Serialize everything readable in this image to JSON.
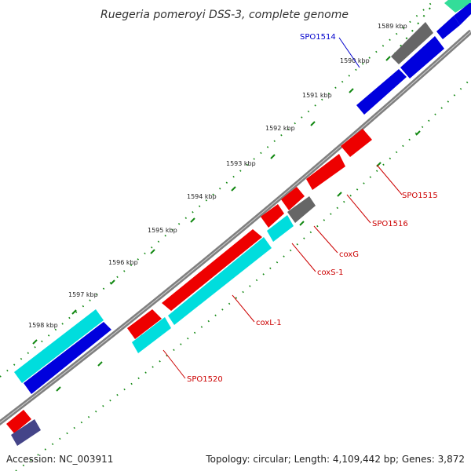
{
  "title": "Ruegeria pomeroyi DSS-3, complete genome",
  "footer": {
    "accession": "Accession: NC_003911",
    "summary": "Topology: circular; Length: 4,109,442 bp; Genes: 3,872"
  },
  "tick_labels": [
    "1589 kbp",
    "1590 kbp",
    "1591 kbp",
    "1592 kbp",
    "1593 kbp",
    "1594 kbp",
    "1595 kbp",
    "1596 kbp",
    "1597 kbp",
    "1598 kbp"
  ],
  "colors": {
    "backbone": "#888888",
    "cds_forward": "#0000dd",
    "cds_reverse": "#ee0000",
    "cds_cyan": "#00dddd",
    "cds_gray": "#666666",
    "cds_green": "#33dd99",
    "cds_navy": "#444488",
    "label_forward": "#0000cc",
    "label_reverse": "#cc0000",
    "ticks": "#118811"
  },
  "features": [
    {
      "name": "SPO1514",
      "strand": "forward",
      "color": "label_forward"
    },
    {
      "name": "SPO1515",
      "strand": "reverse",
      "color": "label_reverse"
    },
    {
      "name": "SPO1516",
      "strand": "reverse",
      "color": "label_reverse"
    },
    {
      "name": "coxG",
      "strand": "reverse",
      "color": "label_reverse"
    },
    {
      "name": "coxS-1",
      "strand": "reverse",
      "color": "label_reverse"
    },
    {
      "name": "coxL-1",
      "strand": "reverse",
      "color": "label_reverse"
    },
    {
      "name": "SPO1520",
      "strand": "reverse",
      "color": "label_reverse"
    }
  ]
}
